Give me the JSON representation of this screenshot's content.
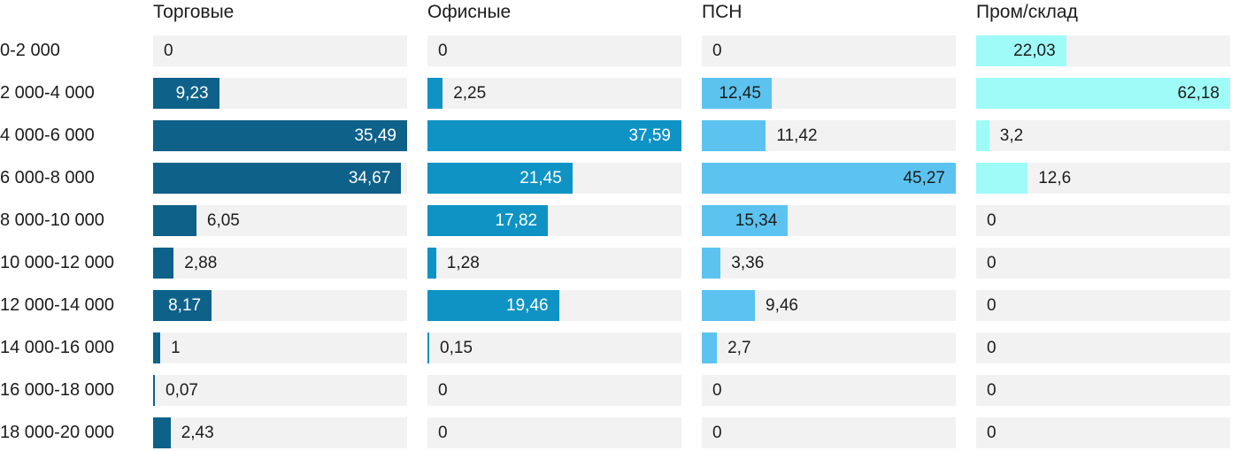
{
  "chart_data": {
    "type": "bar",
    "orientation": "horizontal",
    "title": "",
    "xlabel": "",
    "ylabel": "",
    "grid": false,
    "legend_position": "column-headers-top",
    "normalization": "each series scaled so its max value fills the full track width",
    "value_decimal_separator": ",",
    "track_color": "#f2f2f2",
    "text_color": "#1c1c1c",
    "categories": [
      "0-2 000",
      "2 000-4 000",
      "4 000-6 000",
      "6 000-8 000",
      "8 000-10 000",
      "10 000-12 000",
      "12 000-14 000",
      "14 000-16 000",
      "16 000-18 000",
      "18 000-20 000"
    ],
    "series": [
      {
        "name": "Торговые",
        "color": "#0e6189",
        "inside_label_color": "#ffffff",
        "values": [
          0,
          9.23,
          35.49,
          34.67,
          6.05,
          2.88,
          8.17,
          1,
          0.07,
          2.43
        ]
      },
      {
        "name": "Офисные",
        "color": "#0e93c4",
        "inside_label_color": "#ffffff",
        "values": [
          0,
          2.25,
          37.59,
          21.45,
          17.82,
          1.28,
          19.46,
          0.15,
          0,
          0
        ]
      },
      {
        "name": "ПСН",
        "color": "#5cc3f0",
        "inside_label_color": "#1c1c1c",
        "values": [
          0,
          12.45,
          11.42,
          45.27,
          15.34,
          3.36,
          9.46,
          2.7,
          0,
          0
        ]
      },
      {
        "name": "Пром/склад",
        "color": "#9ffbf7",
        "inside_label_color": "#1c1c1c",
        "values": [
          22.03,
          62.18,
          3.2,
          12.6,
          0,
          0,
          0,
          0,
          0,
          0
        ]
      }
    ]
  }
}
